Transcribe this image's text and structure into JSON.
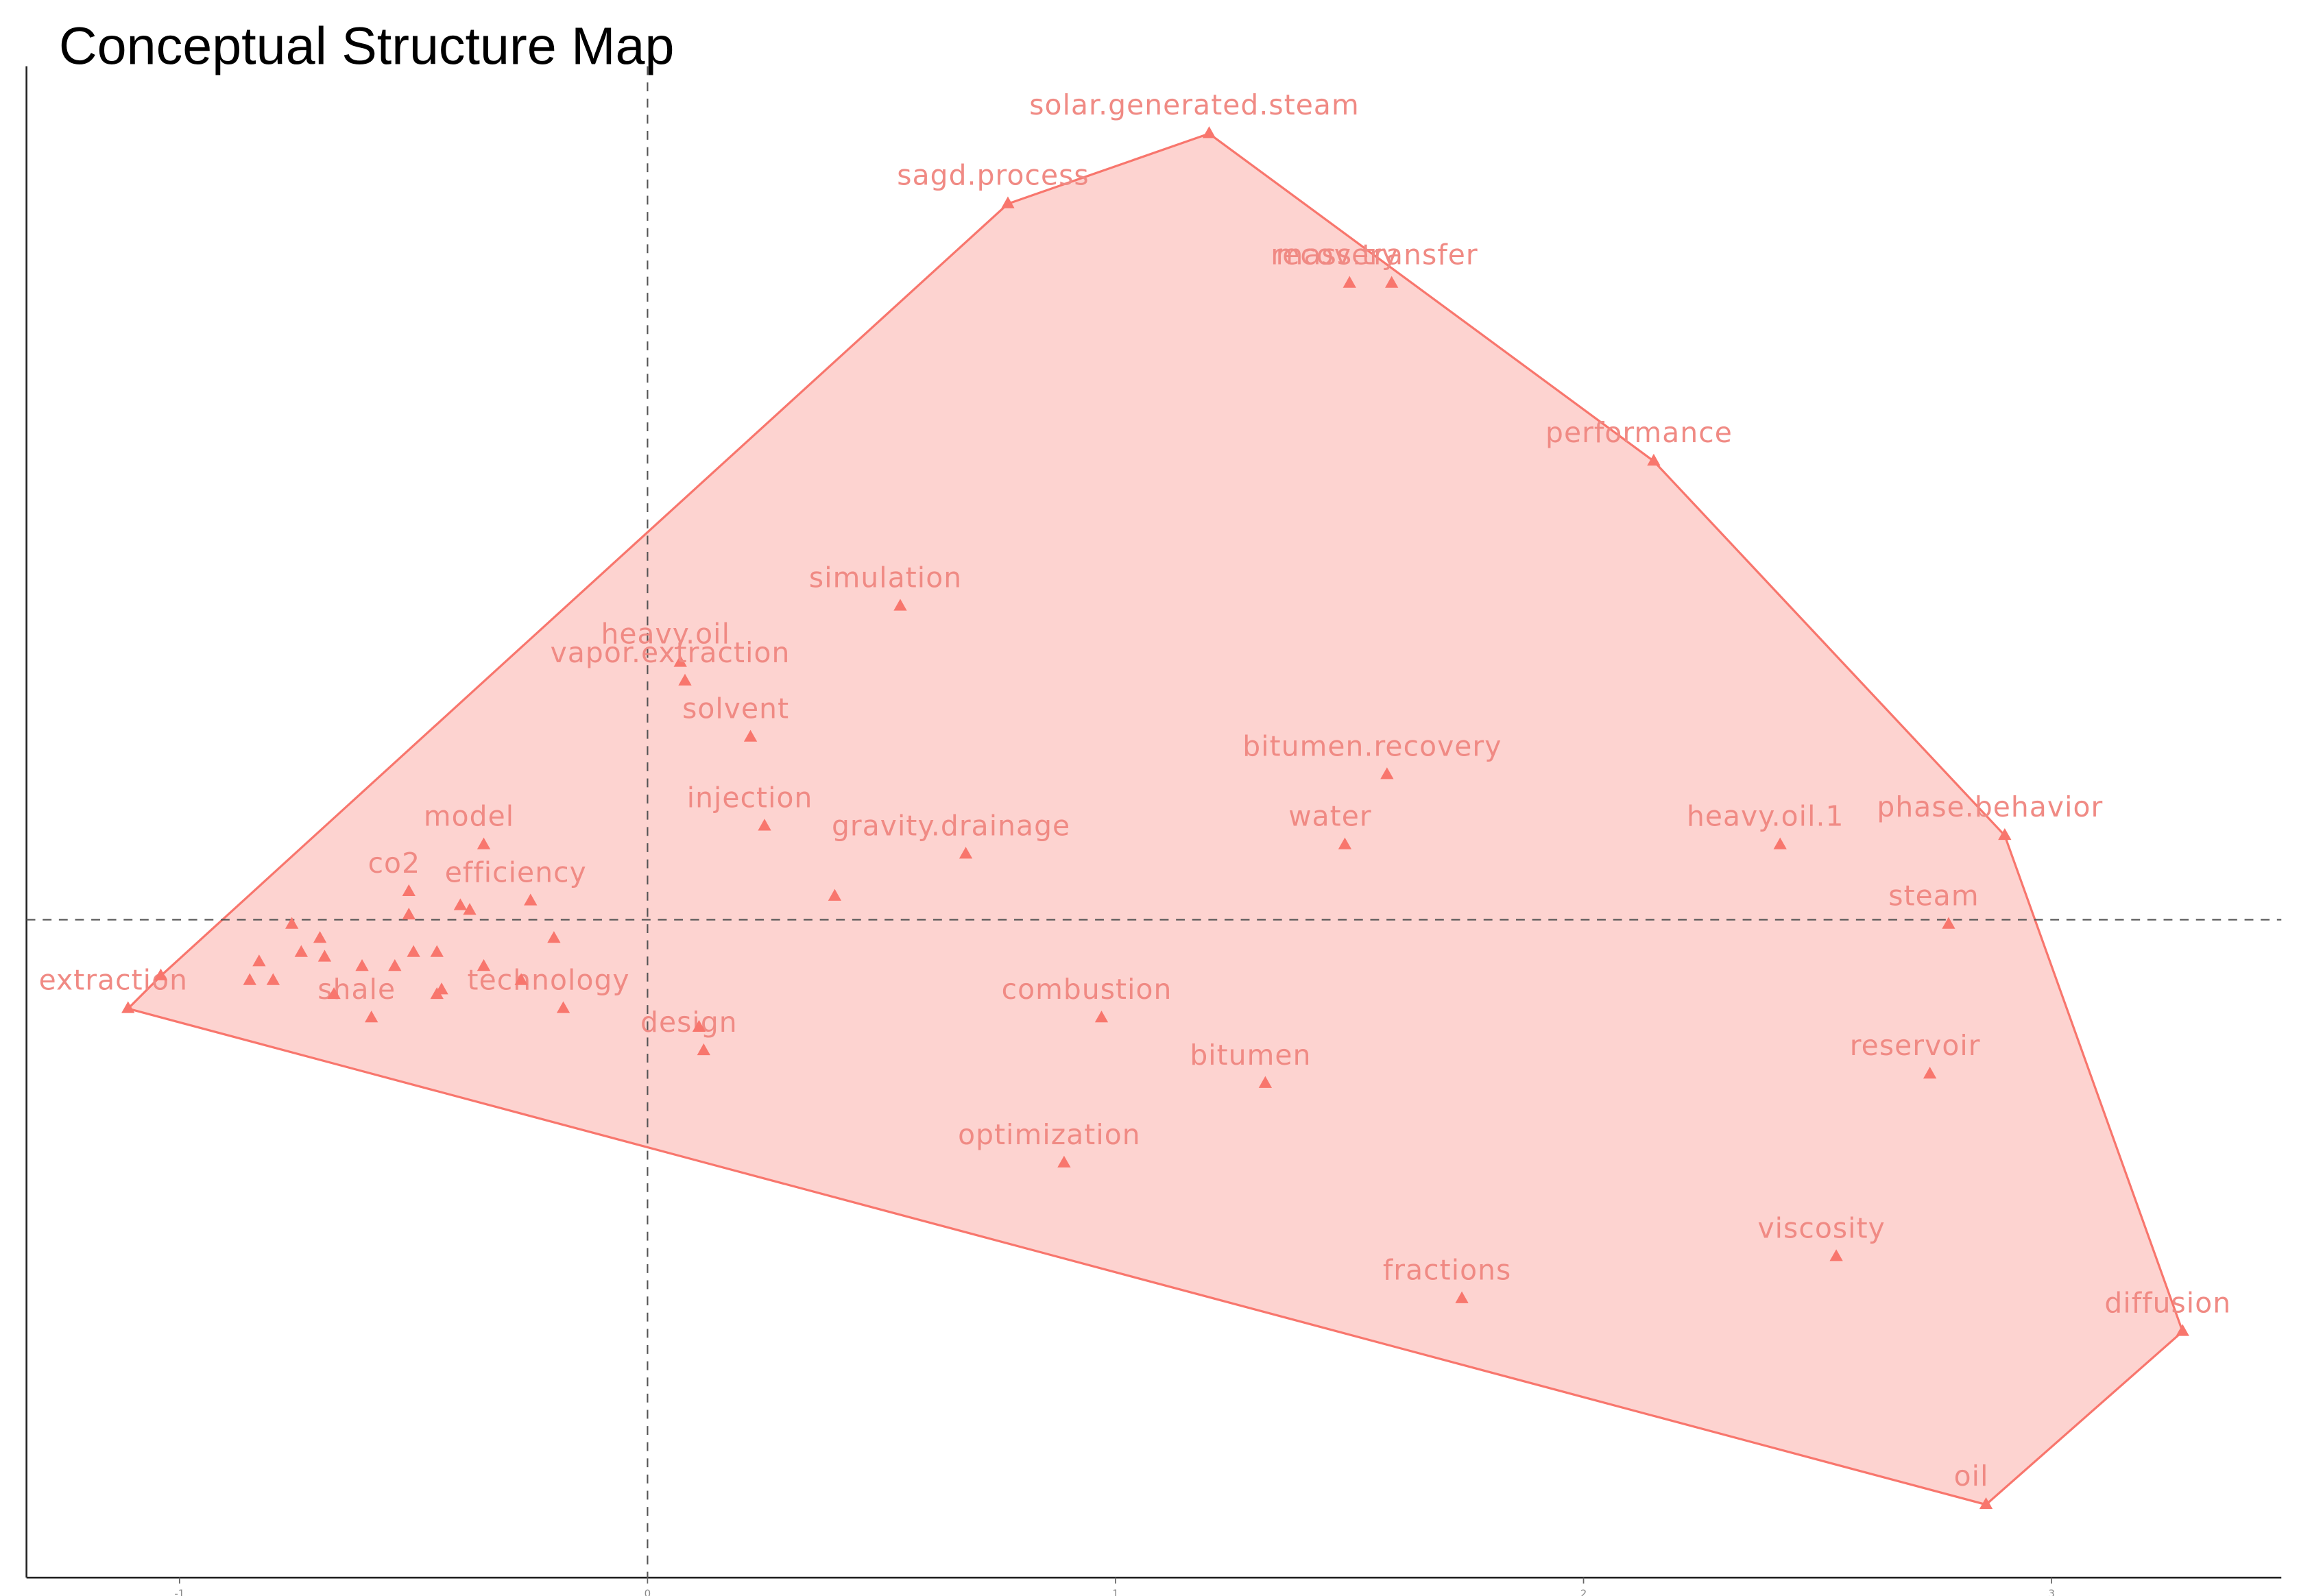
{
  "chart_data": {
    "type": "scatter",
    "title": "Conceptual Structure Map",
    "color": "#F8766D",
    "xlim": [
      -1.327,
      3.491
    ],
    "ylim": [
      -1.406,
      1.824
    ],
    "xticks": [
      -1,
      0,
      1,
      2,
      3
    ],
    "reference_lines": {
      "x": 0,
      "y": 0
    },
    "labels": [
      "solar.generated.steam",
      "sagd.process",
      "recovery",
      "mass.transfer",
      "performance",
      "simulation",
      "heavy.oil",
      "vapor.extraction",
      "solvent",
      "bitumen.recovery",
      "phase.behavior",
      "injection",
      "model",
      "gravity.drainage",
      "water",
      "heavy.oil.1",
      "co2",
      "efficiency",
      "steam",
      "extraction",
      "technology",
      "shale",
      "design",
      "combustion",
      "bitumen",
      "reservoir",
      "optimization",
      "viscosity",
      "fractions",
      "diffusion",
      "oil",
      null,
      null,
      null,
      null,
      null,
      null,
      null,
      null,
      null,
      null,
      null,
      null,
      null,
      null,
      null,
      null,
      null,
      null,
      null,
      null,
      null,
      null,
      null
    ],
    "x": [
      1.2,
      0.77,
      1.5,
      1.59,
      2.15,
      0.54,
      0.07,
      0.08,
      0.22,
      1.58,
      2.9,
      0.25,
      -0.35,
      0.68,
      1.49,
      2.42,
      -0.51,
      -0.25,
      2.78,
      -1.11,
      -0.18,
      -0.59,
      0.12,
      0.97,
      1.32,
      2.74,
      0.89,
      2.54,
      1.74,
      3.28,
      2.86,
      -1.04,
      0.4,
      -0.76,
      -0.7,
      -0.83,
      -0.74,
      -0.69,
      -0.85,
      -0.8,
      -0.61,
      -0.67,
      -0.54,
      -0.5,
      -0.45,
      -0.51,
      -0.4,
      -0.38,
      -0.35,
      -0.27,
      -0.2,
      -0.44,
      -0.45,
      0.11
    ],
    "values": [
      1.68,
      1.53,
      1.36,
      1.36,
      0.98,
      0.67,
      0.55,
      0.51,
      0.39,
      0.31,
      0.18,
      0.2,
      0.16,
      0.14,
      0.16,
      0.16,
      0.06,
      0.04,
      -0.01,
      -0.19,
      -0.19,
      -0.21,
      -0.28,
      -0.21,
      -0.35,
      -0.33,
      -0.52,
      -0.72,
      -0.81,
      -0.88,
      -1.25,
      -0.12,
      0.05,
      -0.01,
      -0.04,
      -0.09,
      -0.07,
      -0.08,
      -0.13,
      -0.13,
      -0.1,
      -0.16,
      -0.1,
      -0.07,
      -0.07,
      0.01,
      0.03,
      0.02,
      -0.1,
      -0.13,
      -0.04,
      -0.15,
      -0.16,
      -0.23
    ]
  }
}
